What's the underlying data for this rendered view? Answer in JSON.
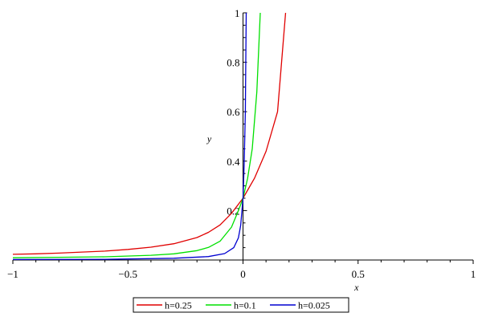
{
  "chart_data": {
    "type": "line",
    "xlabel": "x",
    "ylabel": "y",
    "xlim": [
      -1,
      1
    ],
    "ylim": [
      0,
      1
    ],
    "x_ticks": [
      -1,
      -0.5,
      0,
      0.5,
      1
    ],
    "x_tick_labels": [
      "−1",
      "−0.5",
      "0",
      "0.5",
      "1"
    ],
    "y_ticks": [
      0.2,
      0.4,
      0.6,
      0.8,
      1
    ],
    "y_tick_labels": [
      "0.2",
      "0.4",
      "0.6",
      "0.8",
      "1"
    ],
    "grid": false,
    "legend_position": "bottom",
    "series": [
      {
        "name": "h=0.25",
        "color": "#e00000",
        "x": [
          -1,
          -0.9,
          -0.8,
          -0.7,
          -0.6,
          -0.5,
          -0.4,
          -0.3,
          -0.2,
          -0.15,
          -0.1,
          -0.05,
          0,
          0.05,
          0.1,
          0.15,
          0.185
        ],
        "y": [
          0.023,
          0.025,
          0.028,
          0.032,
          0.036,
          0.043,
          0.052,
          0.066,
          0.091,
          0.112,
          0.142,
          0.189,
          0.25,
          0.331,
          0.44,
          0.6,
          1.0
        ]
      },
      {
        "name": "h=0.1",
        "color": "#00e000",
        "x": [
          -1,
          -0.8,
          -0.6,
          -0.4,
          -0.3,
          -0.2,
          -0.15,
          -0.1,
          -0.05,
          -0.02,
          0,
          0.02,
          0.04,
          0.06,
          0.075
        ],
        "y": [
          0.009,
          0.011,
          0.013,
          0.019,
          0.025,
          0.038,
          0.051,
          0.076,
          0.133,
          0.2,
          0.25,
          0.33,
          0.45,
          0.68,
          1.0
        ]
      },
      {
        "name": "h=0.025",
        "color": "#0000d0",
        "x": [
          -1,
          -0.6,
          -0.3,
          -0.15,
          -0.08,
          -0.04,
          -0.02,
          -0.01,
          0,
          0.005,
          0.01,
          0.014
        ],
        "y": [
          0.002,
          0.003,
          0.007,
          0.014,
          0.026,
          0.05,
          0.09,
          0.14,
          0.25,
          0.38,
          0.6,
          1.0
        ]
      }
    ]
  }
}
